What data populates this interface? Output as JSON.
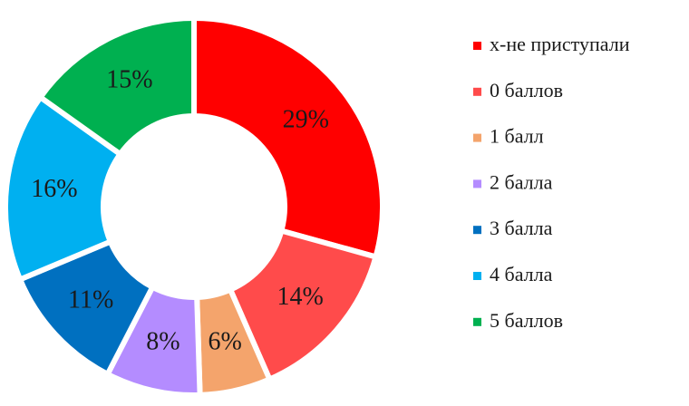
{
  "chart_data": {
    "type": "donut",
    "categories": [
      "х-не приступали",
      "0 баллов",
      "1 балл",
      "2 балла",
      "3 балла",
      "4 балла",
      "5 баллов"
    ],
    "values": [
      29,
      14,
      6,
      8,
      11,
      16,
      15
    ],
    "value_labels": [
      "29%",
      "14%",
      "6%",
      "8%",
      "11%",
      "16%",
      "15%"
    ],
    "colors": [
      "#ff0000",
      "#ff4b4b",
      "#f4a46c",
      "#b48cff",
      "#0070c0",
      "#00b0f0",
      "#00b050"
    ],
    "legend": "right"
  }
}
